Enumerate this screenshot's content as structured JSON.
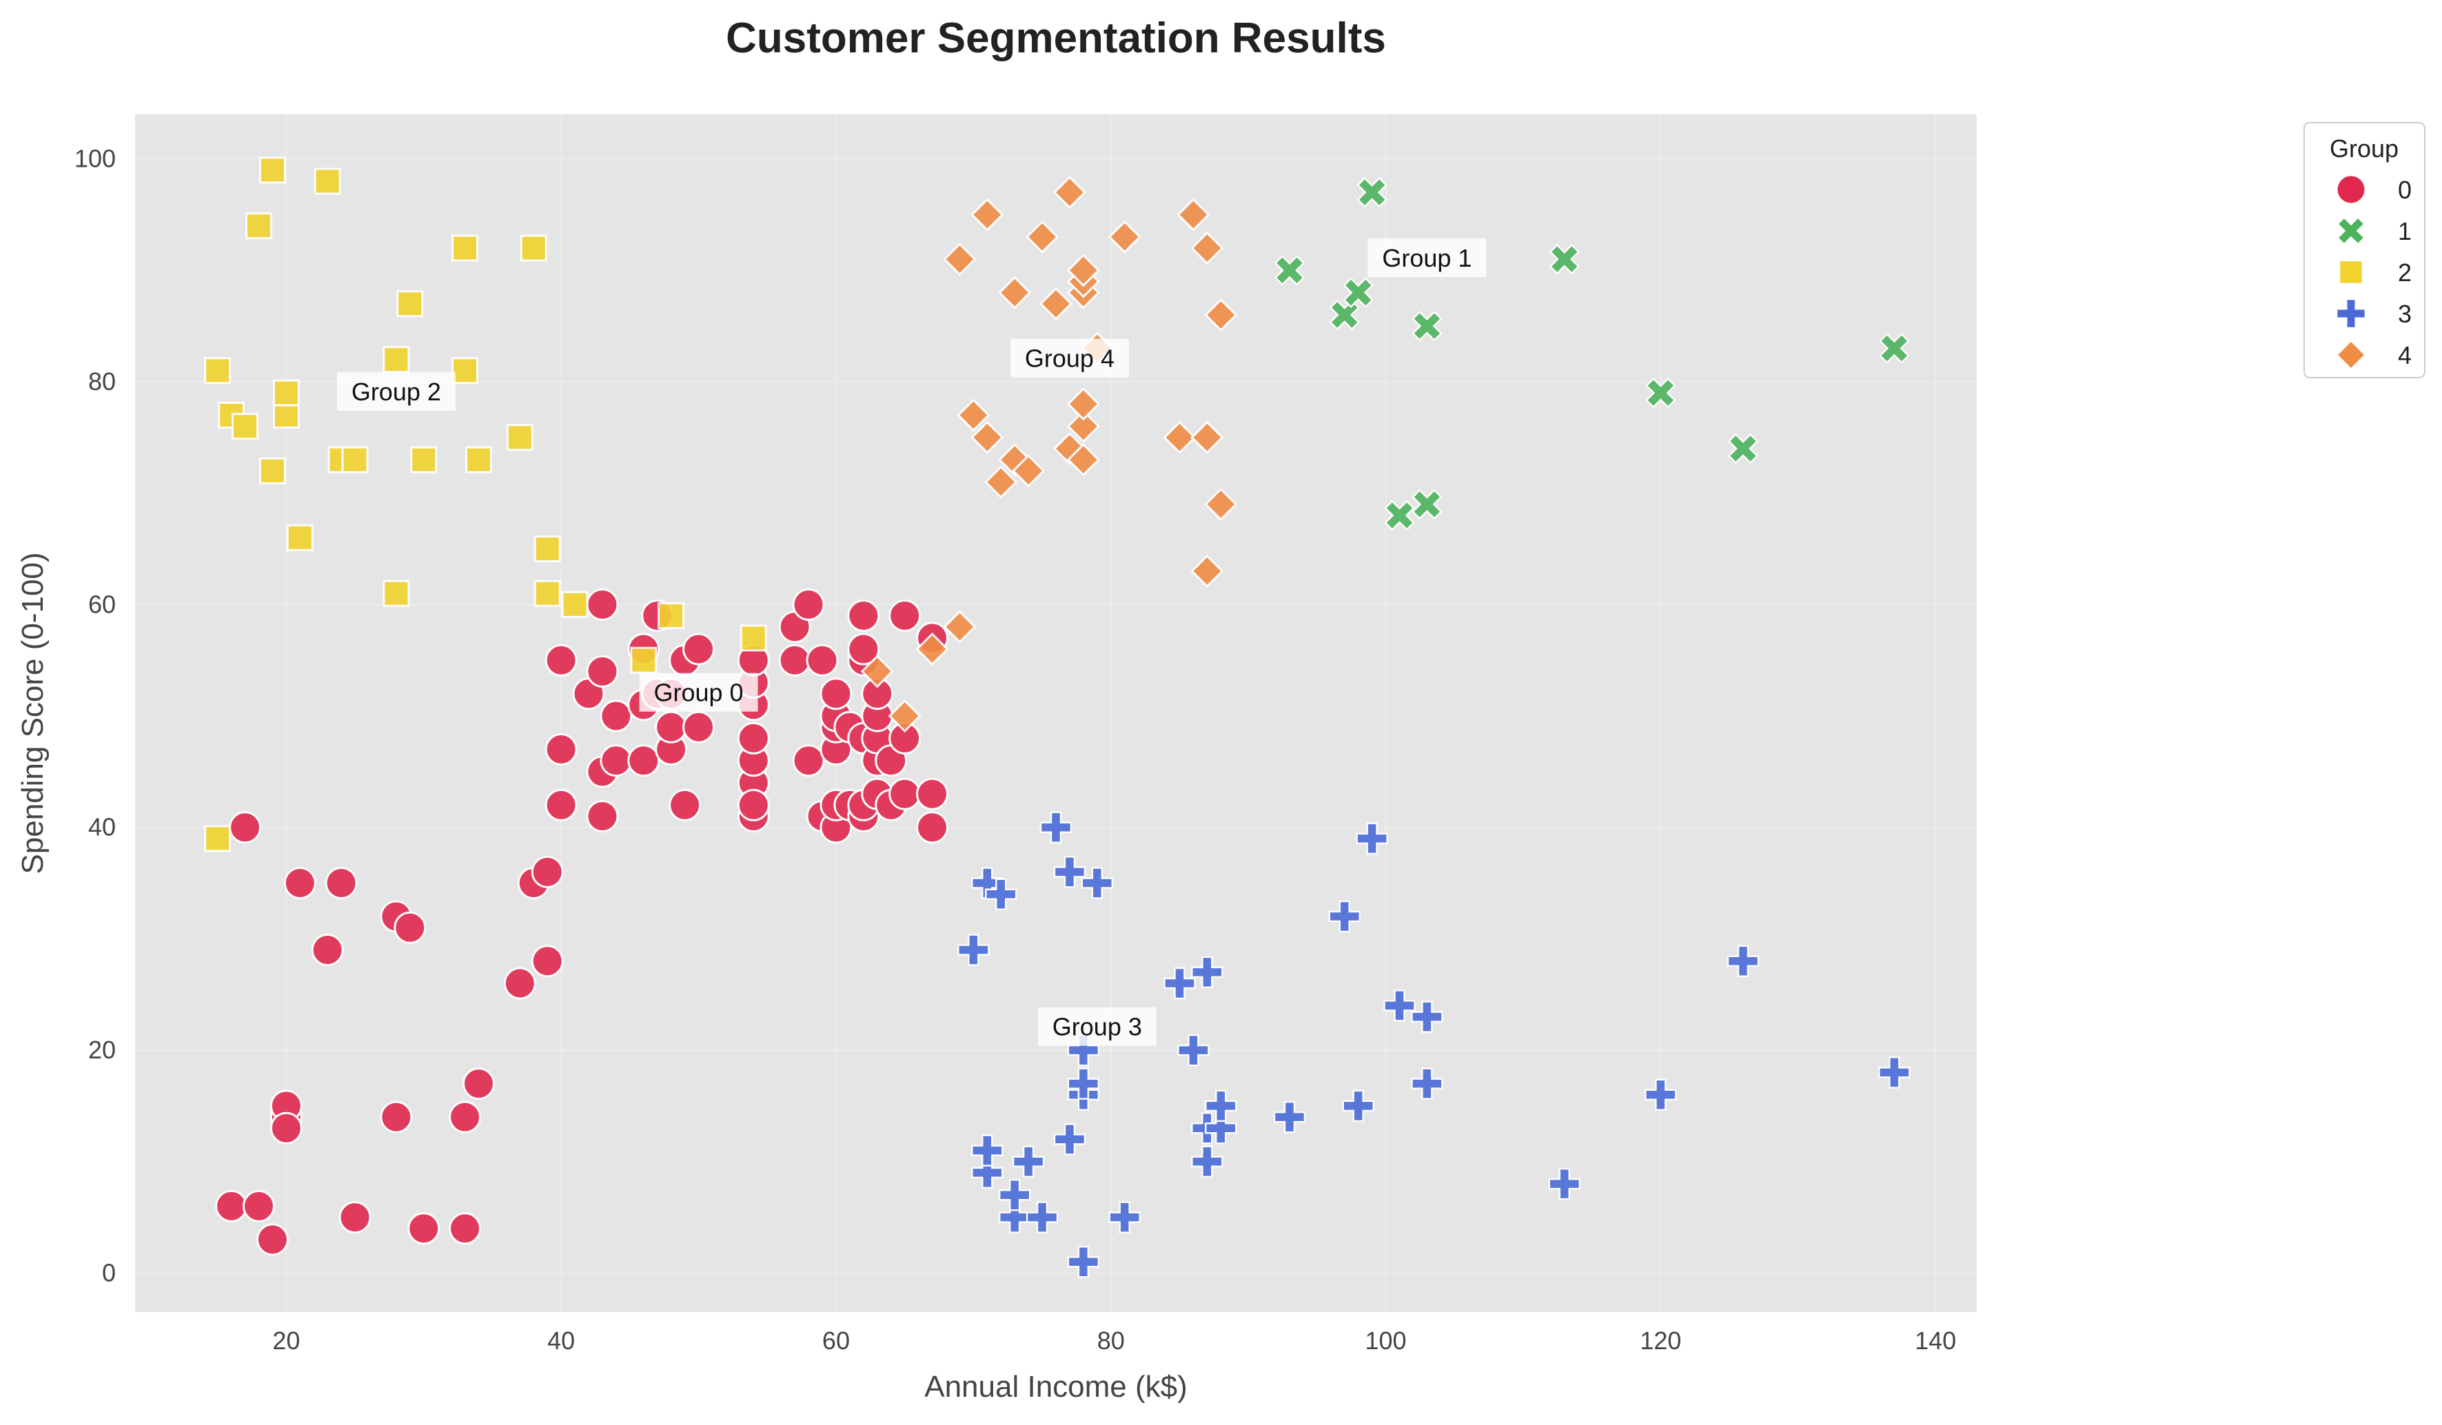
{
  "chart_data": {
    "type": "scatter",
    "title": "Customer Segmentation Results",
    "xlabel": "Annual Income (k$)",
    "ylabel": "Spending Score (0-100)",
    "xlim": [
      9,
      143
    ],
    "ylim": [
      -3.5,
      104
    ],
    "x_ticks": [
      20,
      40,
      60,
      80,
      100,
      120,
      140
    ],
    "y_ticks": [
      0,
      20,
      40,
      60,
      80,
      100
    ],
    "grid": true,
    "legend_title": "Group",
    "legend_position": "outside-right",
    "series": [
      {
        "name": "0",
        "color": "#e0284f",
        "marker": "circle",
        "points": [
          [
            17,
            40
          ],
          [
            21,
            35
          ],
          [
            24,
            35
          ],
          [
            23,
            29
          ],
          [
            28,
            32
          ],
          [
            29,
            31
          ],
          [
            20,
            14
          ],
          [
            20,
            15
          ],
          [
            20,
            13
          ],
          [
            28,
            14
          ],
          [
            33,
            14
          ],
          [
            34,
            17
          ],
          [
            16,
            6
          ],
          [
            18,
            6
          ],
          [
            19,
            3
          ],
          [
            25,
            5
          ],
          [
            30,
            4
          ],
          [
            33,
            4
          ],
          [
            37,
            26
          ],
          [
            38,
            35
          ],
          [
            39,
            36
          ],
          [
            39,
            28
          ],
          [
            40,
            47
          ],
          [
            40,
            42
          ],
          [
            40,
            55
          ],
          [
            42,
            52
          ],
          [
            43,
            41
          ],
          [
            43,
            45
          ],
          [
            43,
            54
          ],
          [
            43,
            60
          ],
          [
            44,
            46
          ],
          [
            44,
            50
          ],
          [
            46,
            46
          ],
          [
            46,
            51
          ],
          [
            46,
            56
          ],
          [
            47,
            52
          ],
          [
            47,
            59
          ],
          [
            48,
            47
          ],
          [
            48,
            49
          ],
          [
            48,
            52
          ],
          [
            49,
            42
          ],
          [
            49,
            55
          ],
          [
            50,
            56
          ],
          [
            50,
            49
          ],
          [
            54,
            41
          ],
          [
            54,
            44
          ],
          [
            54,
            46
          ],
          [
            54,
            48
          ],
          [
            54,
            51
          ],
          [
            54,
            53
          ],
          [
            54,
            55
          ],
          [
            54,
            42
          ],
          [
            57,
            55
          ],
          [
            57,
            58
          ],
          [
            58,
            46
          ],
          [
            58,
            60
          ],
          [
            59,
            41
          ],
          [
            59,
            55
          ],
          [
            60,
            40
          ],
          [
            60,
            42
          ],
          [
            60,
            47
          ],
          [
            60,
            49
          ],
          [
            60,
            50
          ],
          [
            60,
            52
          ],
          [
            61,
            42
          ],
          [
            61,
            49
          ],
          [
            62,
            41
          ],
          [
            62,
            42
          ],
          [
            62,
            48
          ],
          [
            62,
            55
          ],
          [
            62,
            56
          ],
          [
            62,
            59
          ],
          [
            63,
            43
          ],
          [
            63,
            46
          ],
          [
            63,
            48
          ],
          [
            63,
            50
          ],
          [
            63,
            52
          ],
          [
            64,
            42
          ],
          [
            64,
            46
          ],
          [
            65,
            43
          ],
          [
            65,
            48
          ],
          [
            65,
            59
          ],
          [
            67,
            40
          ],
          [
            67,
            43
          ],
          [
            67,
            57
          ]
        ]
      },
      {
        "name": "1",
        "color": "#4db35c",
        "marker": "x",
        "points": [
          [
            93,
            90
          ],
          [
            97,
            86
          ],
          [
            98,
            88
          ],
          [
            99,
            97
          ],
          [
            101,
            68
          ],
          [
            103,
            69
          ],
          [
            103,
            85
          ],
          [
            113,
            91
          ],
          [
            120,
            79
          ],
          [
            126,
            74
          ],
          [
            137,
            83
          ]
        ]
      },
      {
        "name": "2",
        "color": "#f2d32e",
        "marker": "square",
        "points": [
          [
            15,
            39
          ],
          [
            15,
            81
          ],
          [
            16,
            77
          ],
          [
            17,
            76
          ],
          [
            18,
            94
          ],
          [
            19,
            72
          ],
          [
            19,
            99
          ],
          [
            20,
            77
          ],
          [
            20,
            79
          ],
          [
            21,
            66
          ],
          [
            23,
            98
          ],
          [
            24,
            73
          ],
          [
            25,
            73
          ],
          [
            28,
            61
          ],
          [
            28,
            82
          ],
          [
            29,
            87
          ],
          [
            30,
            73
          ],
          [
            33,
            81
          ],
          [
            33,
            92
          ],
          [
            34,
            73
          ],
          [
            37,
            75
          ],
          [
            38,
            92
          ],
          [
            39,
            61
          ],
          [
            39,
            65
          ],
          [
            41,
            60
          ],
          [
            46,
            55
          ],
          [
            48,
            59
          ],
          [
            54,
            57
          ]
        ]
      },
      {
        "name": "3",
        "color": "#4a6ad8",
        "marker": "plus",
        "points": [
          [
            70,
            29
          ],
          [
            71,
            9
          ],
          [
            71,
            11
          ],
          [
            71,
            35
          ],
          [
            72,
            34
          ],
          [
            73,
            5
          ],
          [
            73,
            7
          ],
          [
            74,
            10
          ],
          [
            75,
            5
          ],
          [
            76,
            40
          ],
          [
            77,
            12
          ],
          [
            77,
            36
          ],
          [
            78,
            1
          ],
          [
            78,
            16
          ],
          [
            78,
            17
          ],
          [
            78,
            20
          ],
          [
            79,
            35
          ],
          [
            81,
            5
          ],
          [
            85,
            26
          ],
          [
            86,
            20
          ],
          [
            87,
            10
          ],
          [
            87,
            13
          ],
          [
            87,
            27
          ],
          [
            88,
            13
          ],
          [
            88,
            15
          ],
          [
            93,
            14
          ],
          [
            97,
            32
          ],
          [
            98,
            15
          ],
          [
            99,
            39
          ],
          [
            101,
            24
          ],
          [
            103,
            17
          ],
          [
            103,
            23
          ],
          [
            113,
            8
          ],
          [
            120,
            16
          ],
          [
            126,
            28
          ],
          [
            137,
            18
          ]
        ]
      },
      {
        "name": "4",
        "color": "#ef8c45",
        "marker": "diamond",
        "points": [
          [
            63,
            54
          ],
          [
            65,
            50
          ],
          [
            67,
            56
          ],
          [
            69,
            58
          ],
          [
            69,
            91
          ],
          [
            70,
            77
          ],
          [
            71,
            75
          ],
          [
            71,
            95
          ],
          [
            72,
            71
          ],
          [
            73,
            73
          ],
          [
            73,
            88
          ],
          [
            74,
            72
          ],
          [
            75,
            93
          ],
          [
            76,
            87
          ],
          [
            77,
            74
          ],
          [
            77,
            97
          ],
          [
            78,
            73
          ],
          [
            78,
            76
          ],
          [
            78,
            78
          ],
          [
            78,
            88
          ],
          [
            78,
            89
          ],
          [
            78,
            90
          ],
          [
            79,
            83
          ],
          [
            81,
            93
          ],
          [
            85,
            75
          ],
          [
            86,
            95
          ],
          [
            87,
            63
          ],
          [
            87,
            75
          ],
          [
            87,
            92
          ],
          [
            88,
            69
          ],
          [
            88,
            86
          ]
        ]
      }
    ],
    "annotations": [
      {
        "text": "Group 0",
        "x": 50,
        "y": 52
      },
      {
        "text": "Group 1",
        "x": 103,
        "y": 91
      },
      {
        "text": "Group 2",
        "x": 28,
        "y": 79
      },
      {
        "text": "Group 3",
        "x": 79,
        "y": 22
      },
      {
        "text": "Group 4",
        "x": 77,
        "y": 82
      }
    ]
  }
}
